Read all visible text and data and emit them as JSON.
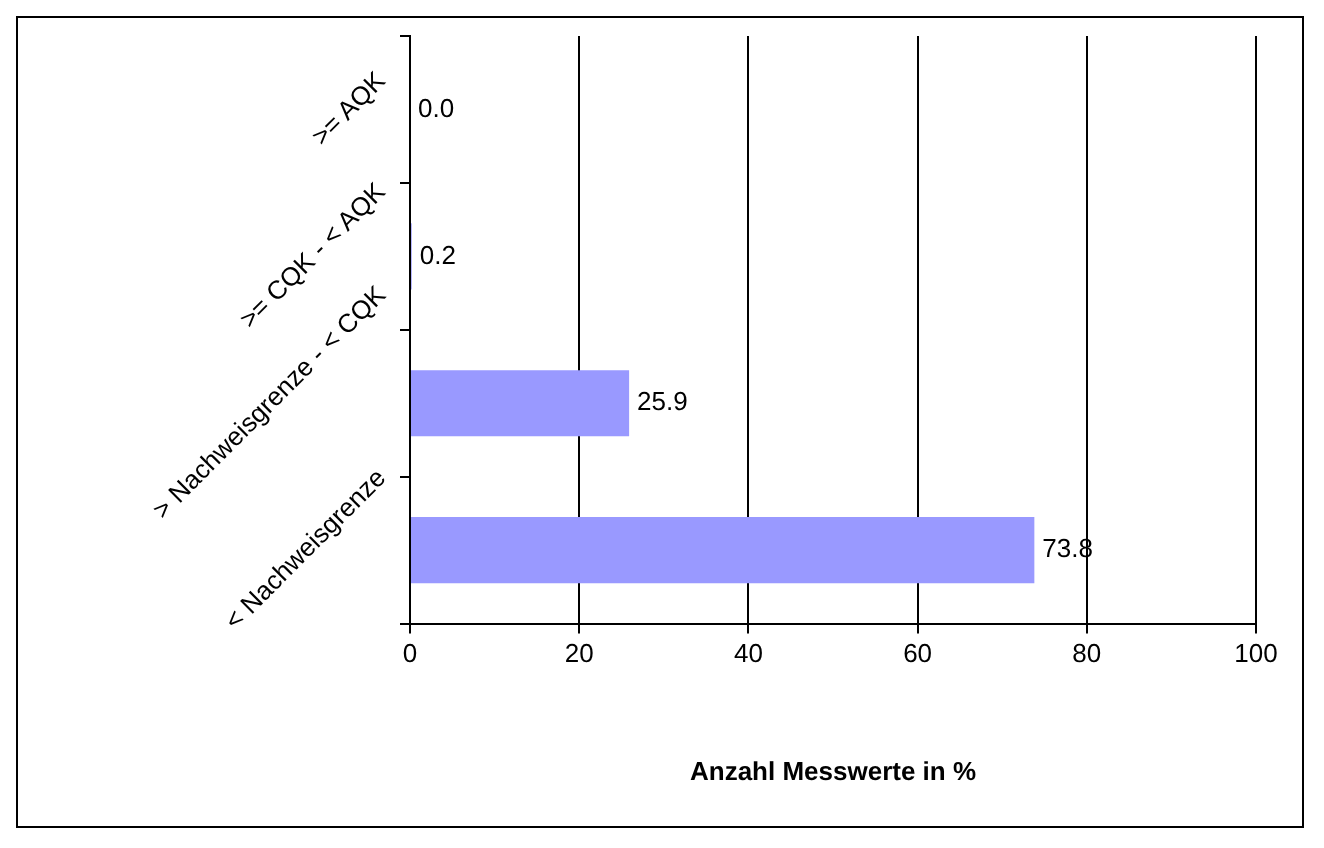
{
  "chart_data": {
    "type": "bar",
    "orientation": "horizontal",
    "xlabel": "Anzahl Messwerte in %",
    "categories": [
      ">= AQK",
      ">= CQK - < AQK",
      "> Nachweisgrenze - < CQK",
      "< Nachweisgrenze"
    ],
    "values": [
      0.0,
      0.2,
      25.9,
      73.8
    ],
    "value_labels": [
      "0.0",
      "0.2",
      "25.9",
      "73.8"
    ],
    "color": "#9999ff",
    "xlim": [
      0,
      100
    ],
    "xticks": [
      0,
      20,
      40,
      60,
      80,
      100
    ],
    "grid": "x",
    "legend": false
  }
}
